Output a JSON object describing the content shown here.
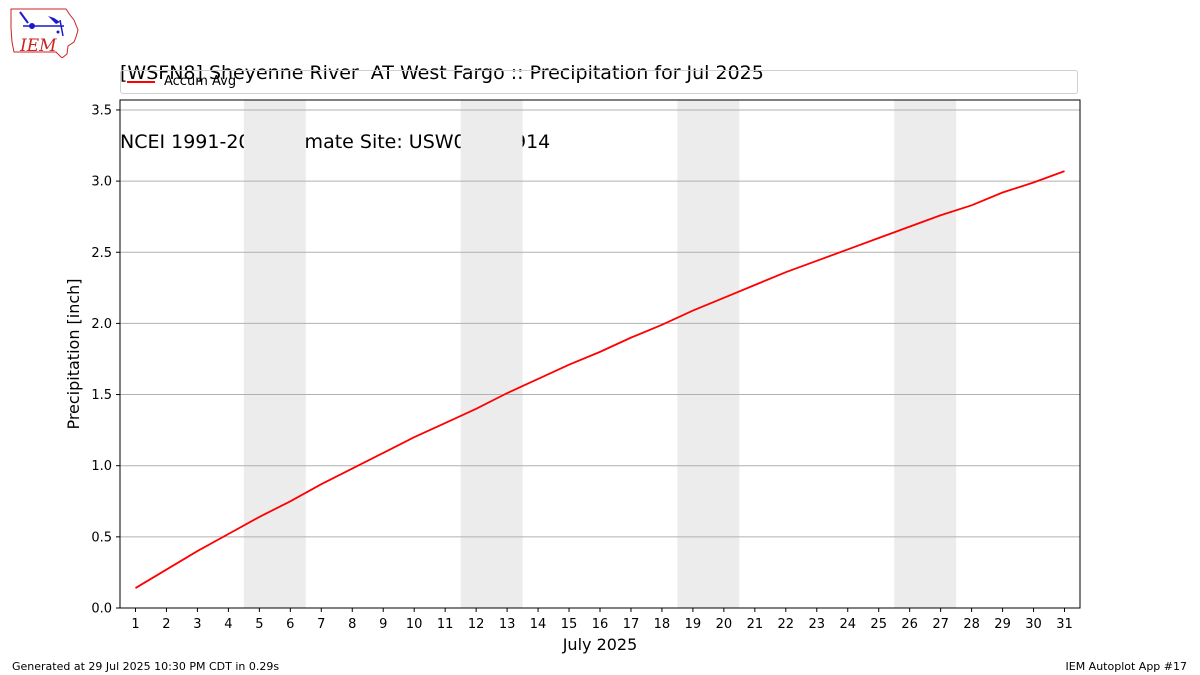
{
  "title_line1": "[WSFN8] Sheyenne River  AT West Fargo :: Precipitation for Jul 2025",
  "title_line2": "NCEI 1991-2020 Climate Site: USW00014914",
  "logo_text": "IEM",
  "footer": {
    "left": "Generated at 29 Jul 2025 10:30 PM CDT in 0.29s",
    "right": "IEM Autoplot App #17"
  },
  "colors": {
    "line": "#ff0000",
    "weekend_band": "#ececec",
    "grid": "#b0b0b0",
    "logo": "#cc2222"
  },
  "chart_data": {
    "type": "line",
    "xlabel": "July 2025",
    "ylabel": "Precipitation [inch]",
    "ylim": [
      0,
      3.57
    ],
    "xlim": [
      0.5,
      31.5
    ],
    "yticks": [
      0.0,
      0.5,
      1.0,
      1.5,
      2.0,
      2.5,
      3.0,
      3.5
    ],
    "ytick_labels": [
      "0.0",
      "0.5",
      "1.0",
      "1.5",
      "2.0",
      "2.5",
      "3.0",
      "3.5"
    ],
    "x": [
      1,
      2,
      3,
      4,
      5,
      6,
      7,
      8,
      9,
      10,
      11,
      12,
      13,
      14,
      15,
      16,
      17,
      18,
      19,
      20,
      21,
      22,
      23,
      24,
      25,
      26,
      27,
      28,
      29,
      30,
      31
    ],
    "xtick_labels": [
      "1",
      "2",
      "3",
      "4",
      "5",
      "6",
      "7",
      "8",
      "9",
      "10",
      "11",
      "12",
      "13",
      "14",
      "15",
      "16",
      "17",
      "18",
      "19",
      "20",
      "21",
      "22",
      "23",
      "24",
      "25",
      "26",
      "27",
      "28",
      "29",
      "30",
      "31"
    ],
    "weekend_days": [
      5,
      6,
      12,
      13,
      19,
      20,
      26,
      27
    ],
    "grid": "y",
    "legend_position": "top",
    "series": [
      {
        "name": "Accum Avg",
        "color": "#ff0000",
        "values": [
          0.14,
          0.27,
          0.4,
          0.52,
          0.64,
          0.75,
          0.87,
          0.98,
          1.09,
          1.2,
          1.3,
          1.4,
          1.51,
          1.61,
          1.71,
          1.8,
          1.9,
          1.99,
          2.09,
          2.18,
          2.27,
          2.36,
          2.44,
          2.52,
          2.6,
          2.68,
          2.76,
          2.83,
          2.92,
          2.99,
          3.07
        ]
      }
    ]
  }
}
